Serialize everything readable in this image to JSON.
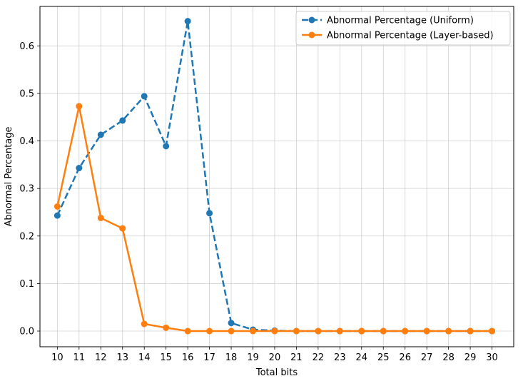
{
  "chart_data": {
    "type": "line",
    "title": "",
    "xlabel": "Total bits",
    "ylabel": "Abnormal Percentage",
    "x": [
      10,
      11,
      12,
      13,
      14,
      15,
      16,
      17,
      18,
      19,
      20,
      21,
      22,
      23,
      24,
      25,
      26,
      27,
      28,
      29,
      30
    ],
    "xticks": [
      "10",
      "11",
      "12",
      "13",
      "14",
      "15",
      "16",
      "17",
      "18",
      "19",
      "20",
      "21",
      "22",
      "23",
      "24",
      "25",
      "26",
      "27",
      "28",
      "29",
      "30"
    ],
    "xlim": [
      9.2,
      31.0
    ],
    "ylim": [
      -0.033,
      0.683
    ],
    "yticks": [
      0.0,
      0.1,
      0.2,
      0.3,
      0.4,
      0.5,
      0.6
    ],
    "ytick_labels": [
      "0.0",
      "0.1",
      "0.2",
      "0.3",
      "0.4",
      "0.5",
      "0.6"
    ],
    "grid": true,
    "legend_position": "top-right",
    "series": [
      {
        "name": "Abnormal Percentage (Uniform)",
        "color": "#1f77b4",
        "linestyle": "dashed",
        "marker": "circle",
        "values": [
          0.243,
          0.343,
          0.413,
          0.443,
          0.494,
          0.389,
          0.652,
          0.248,
          0.017,
          0.003,
          0.001,
          0.0,
          0.0,
          0.0,
          0.0,
          0.0,
          0.0,
          0.0,
          0.0,
          0.0,
          0.0
        ]
      },
      {
        "name": "Abnormal Percentage (Layer-based)",
        "color": "#ff7f0e",
        "linestyle": "solid",
        "marker": "circle",
        "values": [
          0.262,
          0.473,
          0.238,
          0.216,
          0.015,
          0.007,
          0.0,
          0.0,
          0.0,
          0.0,
          0.0,
          0.0,
          0.0,
          0.0,
          0.0,
          0.0,
          0.0,
          0.0,
          0.0,
          0.0,
          0.0
        ]
      }
    ]
  }
}
